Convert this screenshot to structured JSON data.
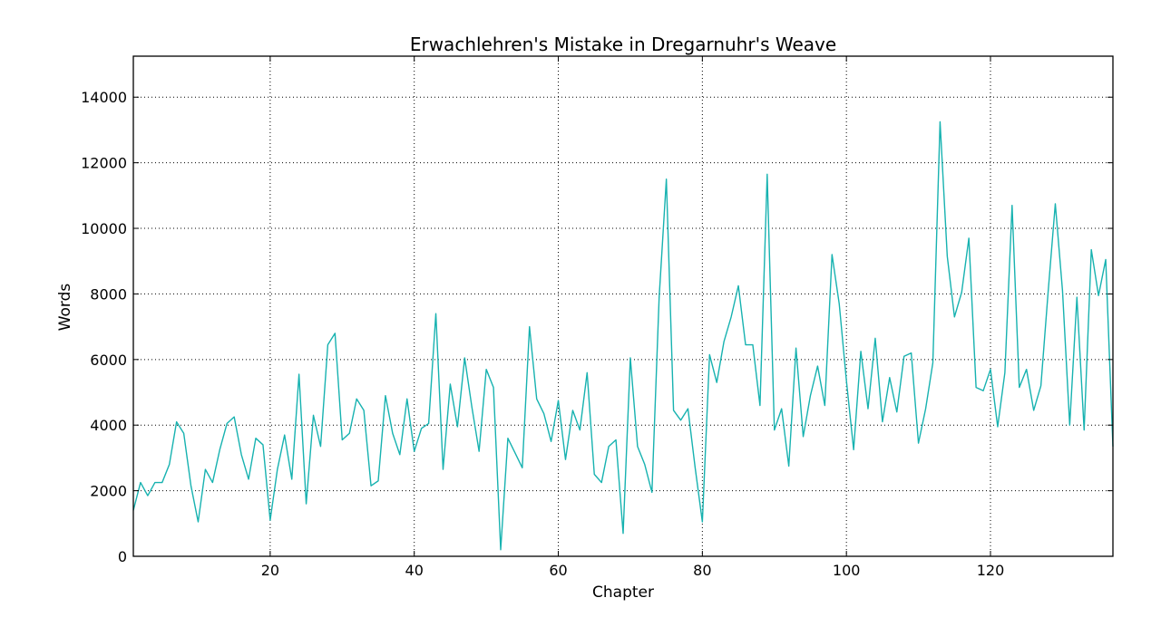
{
  "chart_data": {
    "type": "line",
    "title": "Erwachlehren's Mistake in Dregarnuhr's Weave",
    "xlabel": "Chapter",
    "ylabel": "Words",
    "xlim": [
      1,
      137
    ],
    "ylim": [
      0,
      15250
    ],
    "x_ticks": [
      20,
      40,
      60,
      80,
      100,
      120
    ],
    "y_ticks": [
      0,
      2000,
      4000,
      6000,
      8000,
      10000,
      12000,
      14000
    ],
    "grid": true,
    "legend": "none",
    "series": [
      {
        "color": "#17b2b0",
        "x_start": 1,
        "values": [
          1400,
          2250,
          1850,
          2250,
          2250,
          2800,
          4100,
          3750,
          2150,
          1050,
          2650,
          2250,
          3250,
          4050,
          4250,
          3100,
          2350,
          3600,
          3400,
          1100,
          2650,
          3700,
          2350,
          5550,
          1600,
          4300,
          3350,
          6450,
          6800,
          3550,
          3750,
          4800,
          4450,
          2150,
          2300,
          4900,
          3750,
          3100,
          4800,
          3200,
          3900,
          4050,
          7400,
          2650,
          5250,
          3950,
          6050,
          4550,
          3200,
          5700,
          5150,
          200,
          3600,
          3150,
          2700,
          7000,
          4800,
          4350,
          3500,
          4750,
          2950,
          4450,
          3850,
          5600,
          2500,
          2250,
          3350,
          3550,
          700,
          6050,
          3350,
          2800,
          1950,
          7900,
          11500,
          4450,
          4150,
          4500,
          2700,
          1050,
          6150,
          5300,
          6550,
          7300,
          8250,
          6450,
          6450,
          4600,
          11650,
          3850,
          4500,
          2750,
          6350,
          3650,
          4900,
          5800,
          4600,
          9200,
          7700,
          5350,
          3250,
          6250,
          4500,
          6650,
          4100,
          5450,
          4400,
          6100,
          6200,
          3450,
          4500,
          5900,
          13250,
          9150,
          7300,
          8050,
          9700,
          5150,
          5050,
          5700,
          3950,
          5600,
          10700,
          5150,
          5700,
          4450,
          5200,
          8050,
          10750,
          8100,
          4000,
          7900,
          3850,
          9350,
          7950,
          9050,
          3350
        ]
      }
    ]
  }
}
